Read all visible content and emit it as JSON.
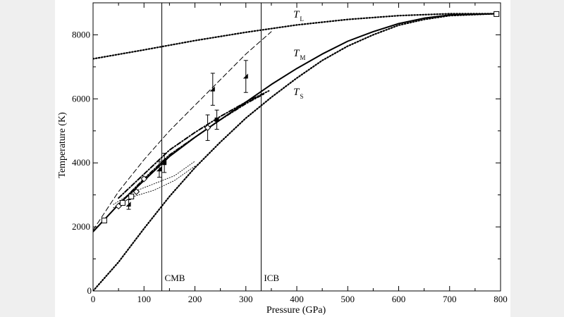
{
  "chart_data": {
    "type": "line",
    "xlabel": "Pressure (GPa)",
    "ylabel": "Temperature (K)",
    "xlim": [
      0,
      800
    ],
    "ylim": [
      0,
      9000
    ],
    "xticks": [
      0,
      100,
      200,
      300,
      400,
      500,
      600,
      700,
      800
    ],
    "yticks": [
      2000,
      4000,
      6000,
      8000
    ],
    "grid": false,
    "boundaries": [
      {
        "label": "CMB",
        "x": 135
      },
      {
        "label": "ICB",
        "x": 330
      }
    ],
    "series": [
      {
        "name": "T",
        "sub": "L",
        "style": "dotted",
        "x": [
          0,
          100,
          200,
          300,
          400,
          500,
          600,
          700,
          790
        ],
        "y": [
          7250,
          7530,
          7820,
          8080,
          8310,
          8480,
          8600,
          8660,
          8660
        ]
      },
      {
        "name": "T",
        "sub": "M",
        "style": "solid",
        "x": [
          0,
          50,
          100,
          150,
          200,
          250,
          300,
          350,
          400,
          450,
          500,
          550,
          600,
          650,
          700,
          790
        ],
        "y": [
          1850,
          2700,
          3450,
          4200,
          4800,
          5350,
          5900,
          6450,
          6950,
          7400,
          7800,
          8100,
          8350,
          8520,
          8620,
          8660
        ]
      },
      {
        "name": "T",
        "sub": "S",
        "style": "dotted",
        "x": [
          0,
          50,
          100,
          150,
          200,
          250,
          300,
          350,
          400,
          450,
          500,
          550,
          600,
          650,
          700,
          790
        ],
        "y": [
          0,
          900,
          1950,
          2950,
          3850,
          4650,
          5400,
          6050,
          6650,
          7200,
          7650,
          8000,
          8300,
          8480,
          8600,
          8660
        ]
      },
      {
        "style": "dashed",
        "x": [
          0,
          50,
          100,
          150,
          200,
          250,
          300,
          350
        ],
        "y": [
          1900,
          3100,
          4100,
          5000,
          5800,
          6600,
          7400,
          8100
        ]
      },
      {
        "style": "dashdot",
        "x": [
          50,
          100,
          150,
          200,
          250,
          300,
          345
        ],
        "y": [
          2900,
          3650,
          4400,
          4950,
          5450,
          5900,
          6250
        ]
      },
      {
        "style": "dashdot",
        "x": [
          50,
          100,
          150,
          200,
          250,
          300,
          335
        ],
        "y": [
          2700,
          3500,
          4250,
          4800,
          5350,
          5850,
          6150
        ]
      },
      {
        "style": "thindot",
        "x": [
          40,
          80,
          120,
          160,
          200
        ],
        "y": [
          2600,
          2950,
          3150,
          3450,
          3900
        ]
      },
      {
        "style": "thindot",
        "x": [
          40,
          80,
          120,
          160,
          200
        ],
        "y": [
          2700,
          3100,
          3350,
          3600,
          4050
        ]
      }
    ],
    "points": [
      {
        "marker": "square",
        "x": 22,
        "y": 2200
      },
      {
        "marker": "square",
        "x": 58,
        "y": 2750
      },
      {
        "marker": "square",
        "x": 75,
        "y": 2950
      },
      {
        "marker": "square",
        "x": 792,
        "y": 8650
      },
      {
        "marker": "diamond",
        "x": 50,
        "y": 2650
      },
      {
        "marker": "diamond",
        "x": 85,
        "y": 3100
      },
      {
        "marker": "diamond",
        "x": 100,
        "y": 3500
      },
      {
        "marker": "diamond",
        "x": 225,
        "y": 5100,
        "err": 400
      },
      {
        "marker": "square-filled",
        "x": 243,
        "y": 5350,
        "err": 300
      },
      {
        "marker": "triangle",
        "x": 70,
        "y": 2700,
        "err": 150
      },
      {
        "marker": "triangle",
        "x": 130,
        "y": 3800,
        "err": 250
      },
      {
        "marker": "triangle",
        "x": 140,
        "y": 4000,
        "err": 300
      },
      {
        "marker": "triangle",
        "x": 235,
        "y": 6300,
        "err": 500
      },
      {
        "marker": "triangle",
        "x": 300,
        "y": 6700,
        "err": 500
      }
    ]
  }
}
